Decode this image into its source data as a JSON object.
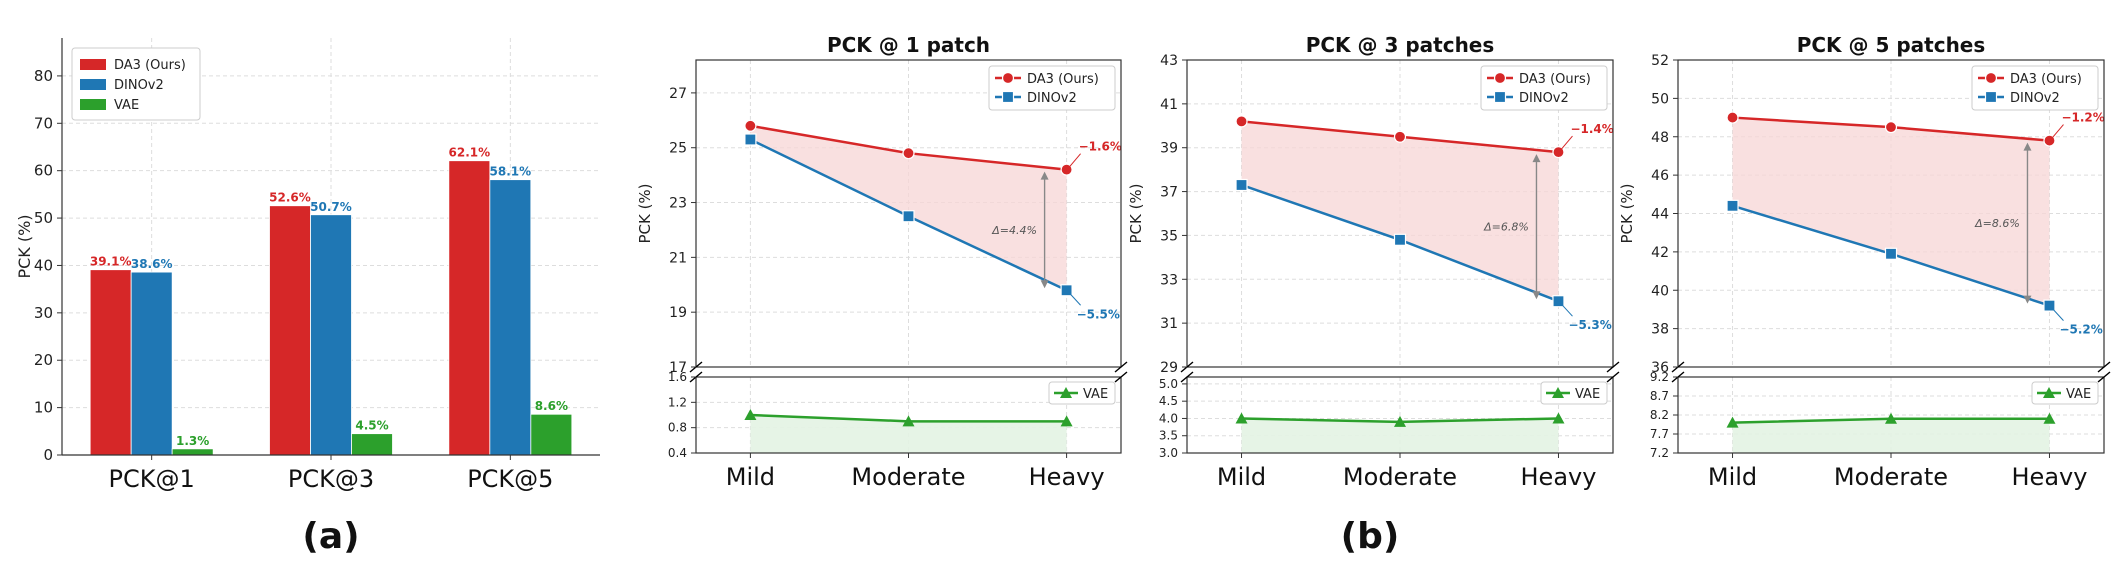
{
  "panel_labels": [
    "(a)",
    "(b)"
  ],
  "colors": {
    "da3": "#d62728",
    "dinov2": "#1f77b4",
    "vae": "#2ca02c",
    "fill_red": "#f7d5d6",
    "fill_green": "#e3f3e3",
    "arrow": "#888888",
    "grid": "#dddddd",
    "axis": "#333333"
  },
  "chart_data": [
    {
      "type": "bar",
      "title": "",
      "xlabel": "",
      "ylabel": "PCK (%)",
      "ylim": [
        0,
        88
      ],
      "yticks": [
        0,
        10,
        20,
        30,
        40,
        50,
        60,
        70,
        80
      ],
      "categories": [
        "PCK@1",
        "PCK@3",
        "PCK@5"
      ],
      "legend": "top-left",
      "grid": true,
      "series": [
        {
          "name": "DA3 (Ours)",
          "values": [
            39.1,
            52.6,
            62.1
          ],
          "labels": [
            "39.1%",
            "52.6%",
            "62.1%"
          ]
        },
        {
          "name": "DINOv2",
          "values": [
            38.6,
            50.7,
            58.1
          ],
          "labels": [
            "38.6%",
            "50.7%",
            "58.1%"
          ]
        },
        {
          "name": "VAE",
          "values": [
            1.3,
            4.5,
            8.6
          ],
          "labels": [
            "1.3%",
            "4.5%",
            "8.6%"
          ]
        }
      ]
    },
    {
      "type": "line",
      "title": "PCK @ 1 patch",
      "ylabel": "PCK (%)",
      "categories": [
        "Mild",
        "Moderate",
        "Heavy"
      ],
      "grid": true,
      "broken_axis": true,
      "upper": {
        "ylim": [
          17,
          28.2
        ],
        "yticks": [
          17,
          19,
          21,
          23,
          25,
          27
        ],
        "tick_labels": [
          "17",
          "19",
          "21",
          "23",
          "25",
          "27"
        ]
      },
      "lower": {
        "ylim": [
          0.4,
          1.6
        ],
        "yticks": [
          0.4,
          0.8,
          1.2,
          1.6
        ],
        "tick_labels": [
          "0.4",
          "0.8",
          "1.2",
          "1.6"
        ]
      },
      "series": [
        {
          "name": "DA3 (Ours)",
          "values": [
            25.8,
            24.8,
            24.2
          ],
          "end_label": "−1.6%"
        },
        {
          "name": "DINOv2",
          "values": [
            25.3,
            22.5,
            19.8
          ],
          "end_label": "−5.5%"
        },
        {
          "name": "VAE",
          "values": [
            1.0,
            0.9,
            0.9
          ]
        }
      ],
      "gap_label": "Δ=4.4%"
    },
    {
      "type": "line",
      "title": "PCK @ 3 patches",
      "ylabel": "PCK (%)",
      "categories": [
        "Mild",
        "Moderate",
        "Heavy"
      ],
      "grid": true,
      "broken_axis": true,
      "upper": {
        "ylim": [
          29,
          43
        ],
        "yticks": [
          29,
          31,
          33,
          35,
          37,
          39,
          41,
          43
        ],
        "tick_labels": [
          "29",
          "31",
          "33",
          "35",
          "37",
          "39",
          "41",
          "43"
        ]
      },
      "lower": {
        "ylim": [
          3.0,
          5.2
        ],
        "yticks": [
          3.0,
          3.5,
          4.0,
          4.5,
          5.0
        ],
        "tick_labels": [
          "3.0",
          "3.5",
          "4.0",
          "4.5",
          "5.0"
        ]
      },
      "series": [
        {
          "name": "DA3 (Ours)",
          "values": [
            40.2,
            39.5,
            38.8
          ],
          "end_label": "−1.4%"
        },
        {
          "name": "DINOv2",
          "values": [
            37.3,
            34.8,
            32.0
          ],
          "end_label": "−5.3%"
        },
        {
          "name": "VAE",
          "values": [
            4.0,
            3.9,
            4.0
          ]
        }
      ],
      "gap_label": "Δ=6.8%"
    },
    {
      "type": "line",
      "title": "PCK @ 5 patches",
      "ylabel": "PCK (%)",
      "categories": [
        "Mild",
        "Moderate",
        "Heavy"
      ],
      "grid": true,
      "broken_axis": true,
      "upper": {
        "ylim": [
          36,
          52
        ],
        "yticks": [
          36,
          38,
          40,
          42,
          44,
          46,
          48,
          50,
          52
        ],
        "tick_labels": [
          "36",
          "38",
          "40",
          "42",
          "44",
          "46",
          "48",
          "50",
          "52"
        ]
      },
      "lower": {
        "ylim": [
          7.2,
          9.2
        ],
        "yticks": [
          7.2,
          7.7,
          8.2,
          8.7,
          9.2
        ],
        "tick_labels": [
          "7.2",
          "7.7",
          "8.2",
          "8.7",
          "9.2"
        ]
      },
      "series": [
        {
          "name": "DA3 (Ours)",
          "values": [
            49.0,
            48.5,
            47.8
          ],
          "end_label": "−1.2%"
        },
        {
          "name": "DINOv2",
          "values": [
            44.4,
            41.9,
            39.2
          ],
          "end_label": "−5.2%"
        },
        {
          "name": "VAE",
          "values": [
            8.0,
            8.1,
            8.1
          ]
        }
      ],
      "gap_label": "Δ=8.6%"
    }
  ]
}
